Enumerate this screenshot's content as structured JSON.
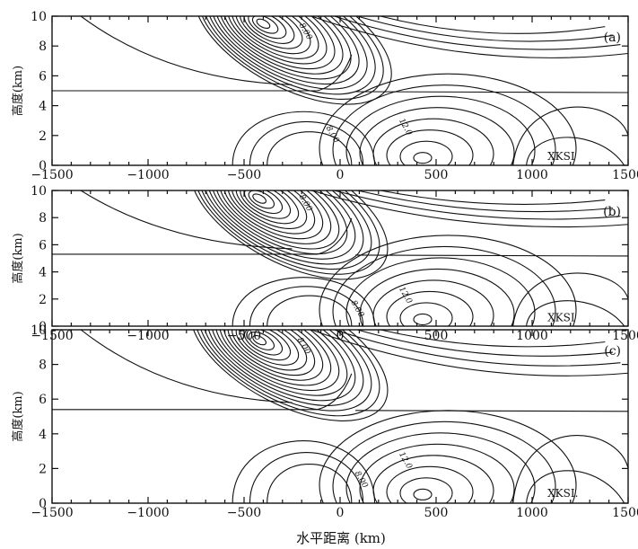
{
  "figure": {
    "xlabel": "水平距离 (km)",
    "ylabel": "高度(km)"
  },
  "chart_data": [
    {
      "type": "contour",
      "panel_label": "(a)",
      "x_ticks": [
        -1500,
        -1000,
        -500,
        0,
        500,
        1000,
        1500
      ],
      "y_ticks": [
        0,
        2,
        4,
        6,
        8,
        10
      ],
      "xlim": [
        -1500,
        1500
      ],
      "ylim": [
        0,
        10
      ],
      "tropopause_height_km": 5.0,
      "max_center": {
        "x": -400,
        "y": 9.5
      },
      "contour_labels": [
        {
          "text": "8.00",
          "x": -190,
          "y": 8.9
        },
        {
          "text": "8.00",
          "x": -50,
          "y": 2.0
        },
        {
          "text": "12.0",
          "x": 330,
          "y": 2.5
        }
      ],
      "marker_text": "XKSI"
    },
    {
      "type": "contour",
      "panel_label": "(b)",
      "x_ticks": [
        -1500,
        -1000,
        -500,
        0,
        500,
        1000,
        1500
      ],
      "y_ticks": [
        0,
        2,
        4,
        6,
        8,
        10
      ],
      "xlim": [
        -1500,
        1500
      ],
      "ylim": [
        0,
        10
      ],
      "tropopause_height_km": 5.3,
      "max_center": {
        "x": -420,
        "y": 9.4
      },
      "contour_labels": [
        {
          "text": "8.00",
          "x": -190,
          "y": 9.0
        },
        {
          "text": "8.00",
          "x": 80,
          "y": 1.2
        },
        {
          "text": "12.0",
          "x": 330,
          "y": 2.2
        }
      ],
      "marker_text": "XKSI"
    },
    {
      "type": "contour",
      "panel_label": "(c)",
      "x_ticks": [
        -1500,
        -1000,
        -500,
        0,
        500,
        1000,
        1500
      ],
      "y_ticks": [
        0,
        2,
        4,
        6,
        8,
        10
      ],
      "xlim": [
        -1500,
        1500
      ],
      "ylim": [
        0,
        10
      ],
      "tropopause_height_km": 5.4,
      "max_center": {
        "x": -420,
        "y": 9.4
      },
      "contour_labels": [
        {
          "text": "8.00",
          "x": -200,
          "y": 9.0
        },
        {
          "text": "8.00",
          "x": 100,
          "y": 1.3
        },
        {
          "text": "12.0",
          "x": 330,
          "y": 2.4
        }
      ],
      "marker_text": "XKSI."
    }
  ]
}
